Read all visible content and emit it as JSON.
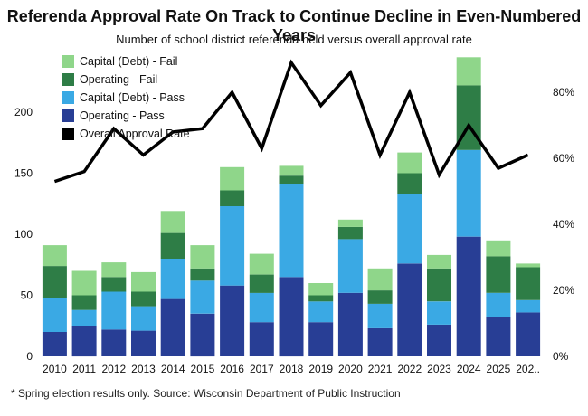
{
  "title": "Referenda Approval Rate On Track to Continue Decline in Even-Numbered Years",
  "subtitle": "Number of school district referenda held versus overall approval rate",
  "footnote": "* Spring election results only. Source: Wisconsin Department of Public Instruction",
  "colors": {
    "capital_fail": "#8fd68a",
    "operating_fail": "#2e7d46",
    "capital_pass": "#3aa9e4",
    "operating_pass": "#283e95",
    "approval_line": "#000000"
  },
  "chart_data": {
    "type": "bar",
    "stacked": true,
    "categories": [
      "2010",
      "2011",
      "2012",
      "2013",
      "2014",
      "2015",
      "2016",
      "2017",
      "2018",
      "2019",
      "2020",
      "2021",
      "2022",
      "2023",
      "2024",
      "2025",
      "202.."
    ],
    "series": [
      {
        "name": "Operating - Pass",
        "values": [
          20,
          25,
          22,
          21,
          47,
          35,
          58,
          28,
          65,
          28,
          52,
          23,
          76,
          26,
          98,
          32,
          36
        ]
      },
      {
        "name": "Capital (Debt) - Pass",
        "values": [
          28,
          13,
          31,
          20,
          33,
          27,
          65,
          24,
          76,
          17,
          44,
          20,
          57,
          19,
          71,
          20,
          10
        ]
      },
      {
        "name": "Operating - Fail",
        "values": [
          26,
          12,
          12,
          12,
          21,
          10,
          13,
          15,
          7,
          5,
          10,
          11,
          17,
          27,
          53,
          30,
          27
        ]
      },
      {
        "name": "Capital (Debt) - Fail",
        "values": [
          17,
          20,
          12,
          16,
          18,
          19,
          19,
          17,
          8,
          10,
          6,
          18,
          17,
          11,
          23,
          13,
          3
        ]
      }
    ],
    "line_series": {
      "name": "Overall Approval Rate",
      "axis": "right",
      "values": [
        0.53,
        0.56,
        0.69,
        0.61,
        0.68,
        0.69,
        0.8,
        0.63,
        0.89,
        0.76,
        0.86,
        0.61,
        0.8,
        0.55,
        0.7,
        0.57,
        0.61
      ]
    },
    "legend": [
      "Capital (Debt) - Fail",
      "Operating - Fail",
      "Capital (Debt) - Pass",
      "Operating - Pass",
      "Overall Approval Rate"
    ],
    "legend_position": "top-left",
    "y_left": {
      "ticks": [
        0,
        50,
        100,
        150,
        200
      ],
      "ylim": [
        0,
        240
      ]
    },
    "y_right": {
      "ticks": [
        "0%",
        "20%",
        "40%",
        "60%",
        "80%"
      ],
      "tick_values": [
        0,
        0.2,
        0.4,
        0.6,
        0.8
      ],
      "ylim": [
        0,
        0.888
      ]
    },
    "grid": false
  }
}
